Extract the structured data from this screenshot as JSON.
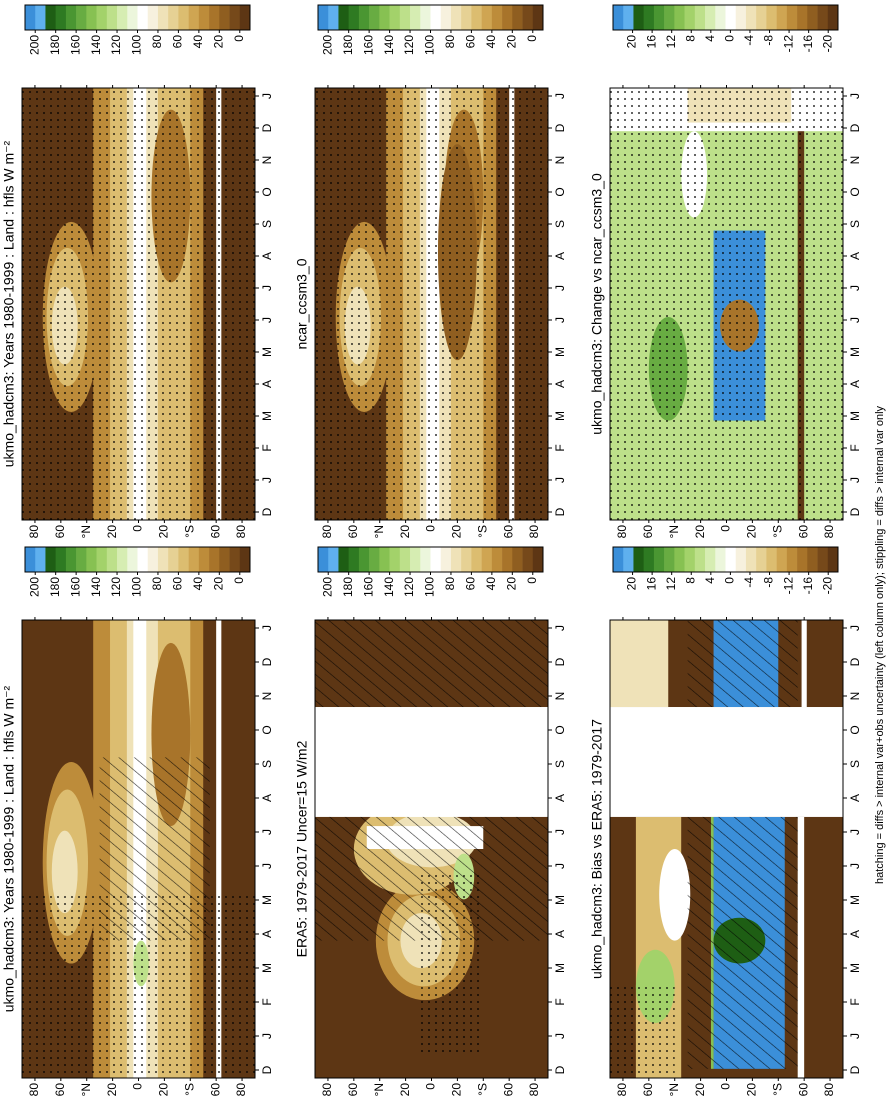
{
  "chart_data": [
    {
      "type": "contour",
      "title": "ukmo_hadcm3: Years 1980-1999 : Land : hfls W m⁻²",
      "categories": [
        "D",
        "J",
        "F",
        "M",
        "A",
        "M",
        "J",
        "J",
        "A",
        "S",
        "O",
        "N",
        "D",
        "J"
      ],
      "ylim": [
        -90,
        90
      ],
      "yticks": [
        80,
        60,
        {
          "value": 40,
          "label": "°N"
        },
        20,
        0,
        {
          "value": -20,
          "label": "20"
        },
        {
          "value": -40,
          "label": "°S"
        },
        {
          "value": -60,
          "label": "60"
        },
        {
          "value": -80,
          "label": "80"
        }
      ],
      "colorbar": {
        "lim": [
          -10,
          210
        ],
        "ticks": [
          200,
          180,
          160,
          140,
          120,
          100,
          80,
          60,
          40,
          20,
          0
        ],
        "colors": [
          "#3b8fd9",
          "#5fb0ee",
          "#1e5e14",
          "#2e7a22",
          "#4a9632",
          "#68ac42",
          "#87c152",
          "#a3d26a",
          "#bde08a",
          "#d6edb2",
          "#ecf6dc",
          "#ffffff",
          "#f7f1de",
          "#efe2b8",
          "#e6d194",
          "#dcbd70",
          "#cfa552",
          "#bd8c3a",
          "#a8742a",
          "#8f5e20",
          "#76491a",
          "#5d3614"
        ]
      },
      "hatching": true,
      "stippling": true
    },
    {
      "type": "contour",
      "title": "ukmo_hadcm3: Years 1980-1999 : Land : hfls W m⁻²",
      "categories": [
        "D",
        "J",
        "F",
        "M",
        "A",
        "M",
        "J",
        "J",
        "A",
        "S",
        "O",
        "N",
        "D",
        "J"
      ],
      "ylim": [
        -90,
        90
      ],
      "yticks": [
        80,
        60,
        {
          "value": 40,
          "label": "°N"
        },
        20,
        0,
        {
          "value": -20,
          "label": "20"
        },
        {
          "value": -40,
          "label": "°S"
        },
        {
          "value": -60,
          "label": "60"
        },
        {
          "value": -80,
          "label": "80"
        }
      ],
      "colorbar": {
        "lim": [
          -10,
          210
        ],
        "ticks": [
          200,
          180,
          160,
          140,
          120,
          100,
          80,
          60,
          40,
          20,
          0
        ],
        "colors": [
          "#3b8fd9",
          "#5fb0ee",
          "#1e5e14",
          "#2e7a22",
          "#4a9632",
          "#68ac42",
          "#87c152",
          "#a3d26a",
          "#bde08a",
          "#d6edb2",
          "#ecf6dc",
          "#ffffff",
          "#f7f1de",
          "#efe2b8",
          "#e6d194",
          "#dcbd70",
          "#cfa552",
          "#bd8c3a",
          "#a8742a",
          "#8f5e20",
          "#76491a",
          "#5d3614"
        ]
      },
      "hatching": false,
      "stippling": true
    },
    {
      "type": "contour",
      "title": "ERA5: 1979-2017 Uncer=15 W/m2",
      "categories": [
        "D",
        "J",
        "F",
        "M",
        "A",
        "M",
        "J",
        "J",
        "A",
        "S",
        "O",
        "N",
        "D",
        "J"
      ],
      "ylim": [
        -90,
        90
      ],
      "yticks": [
        80,
        60,
        {
          "value": 40,
          "label": "°N"
        },
        20,
        0,
        {
          "value": -20,
          "label": "20"
        },
        {
          "value": -40,
          "label": "°S"
        },
        {
          "value": -60,
          "label": "60"
        },
        {
          "value": -80,
          "label": "80"
        }
      ],
      "colorbar": {
        "lim": [
          -10,
          210
        ],
        "ticks": [
          200,
          180,
          160,
          140,
          120,
          100,
          80,
          60,
          40,
          20,
          0
        ],
        "colors": [
          "#3b8fd9",
          "#5fb0ee",
          "#1e5e14",
          "#2e7a22",
          "#4a9632",
          "#68ac42",
          "#87c152",
          "#a3d26a",
          "#bde08a",
          "#d6edb2",
          "#ecf6dc",
          "#ffffff",
          "#f7f1de",
          "#efe2b8",
          "#e6d194",
          "#dcbd70",
          "#cfa552",
          "#bd8c3a",
          "#a8742a",
          "#8f5e20",
          "#76491a",
          "#5d3614"
        ]
      },
      "hatching": true,
      "stippling": true
    },
    {
      "type": "contour",
      "title": "ncar_ccsm3_0",
      "categories": [
        "D",
        "J",
        "F",
        "M",
        "A",
        "M",
        "J",
        "J",
        "A",
        "S",
        "O",
        "N",
        "D",
        "J"
      ],
      "ylim": [
        -90,
        90
      ],
      "yticks": [
        80,
        60,
        {
          "value": 40,
          "label": "°N"
        },
        20,
        0,
        {
          "value": -20,
          "label": "20"
        },
        {
          "value": -40,
          "label": "°S"
        },
        {
          "value": -60,
          "label": "60"
        },
        {
          "value": -80,
          "label": "80"
        }
      ],
      "colorbar": {
        "lim": [
          -10,
          210
        ],
        "ticks": [
          200,
          180,
          160,
          140,
          120,
          100,
          80,
          60,
          40,
          20,
          0
        ],
        "colors": [
          "#3b8fd9",
          "#5fb0ee",
          "#1e5e14",
          "#2e7a22",
          "#4a9632",
          "#68ac42",
          "#87c152",
          "#a3d26a",
          "#bde08a",
          "#d6edb2",
          "#ecf6dc",
          "#ffffff",
          "#f7f1de",
          "#efe2b8",
          "#e6d194",
          "#dcbd70",
          "#cfa552",
          "#bd8c3a",
          "#a8742a",
          "#8f5e20",
          "#76491a",
          "#5d3614"
        ]
      },
      "hatching": false,
      "stippling": true
    },
    {
      "type": "contour",
      "title": "ukmo_hadcm3: Bias vs ERA5: 1979-2017",
      "categories": [
        "D",
        "J",
        "F",
        "M",
        "A",
        "M",
        "J",
        "J",
        "A",
        "S",
        "O",
        "N",
        "D",
        "J"
      ],
      "ylim": [
        -90,
        90
      ],
      "yticks": [
        80,
        60,
        {
          "value": 40,
          "label": "°N"
        },
        20,
        0,
        {
          "value": -20,
          "label": "20"
        },
        {
          "value": -40,
          "label": "°S"
        },
        {
          "value": -60,
          "label": "60"
        },
        {
          "value": -80,
          "label": "80"
        }
      ],
      "colorbar": {
        "lim": [
          -22,
          24
        ],
        "ticks": [
          20,
          16,
          12,
          8,
          4,
          0,
          -4,
          -8,
          -12,
          -16,
          -20
        ],
        "colors": [
          "#3b8fd9",
          "#5fb0ee",
          "#1e5e14",
          "#2e7a22",
          "#4a9632",
          "#68ac42",
          "#87c152",
          "#a3d26a",
          "#bde08a",
          "#d6edb2",
          "#ecf6dc",
          "#ffffff",
          "#f7f1de",
          "#efe2b8",
          "#e6d194",
          "#dcbd70",
          "#cfa552",
          "#bd8c3a",
          "#a8742a",
          "#8f5e20",
          "#76491a",
          "#5d3614"
        ]
      },
      "hatching": true,
      "stippling": true
    },
    {
      "type": "contour",
      "title": "ukmo_hadcm3: Change vs ncar_ccsm3_0",
      "categories": [
        "D",
        "J",
        "F",
        "M",
        "A",
        "M",
        "J",
        "J",
        "A",
        "S",
        "O",
        "N",
        "D",
        "J"
      ],
      "ylim": [
        -90,
        90
      ],
      "yticks": [
        80,
        60,
        {
          "value": 40,
          "label": "°N"
        },
        20,
        0,
        {
          "value": -20,
          "label": "20"
        },
        {
          "value": -40,
          "label": "°S"
        },
        {
          "value": -60,
          "label": "60"
        },
        {
          "value": -80,
          "label": "80"
        }
      ],
      "colorbar": {
        "lim": [
          -22,
          24
        ],
        "ticks": [
          20,
          16,
          12,
          8,
          4,
          0,
          -4,
          -8,
          -12,
          -16,
          -20
        ],
        "colors": [
          "#3b8fd9",
          "#5fb0ee",
          "#1e5e14",
          "#2e7a22",
          "#4a9632",
          "#68ac42",
          "#87c152",
          "#a3d26a",
          "#bde08a",
          "#d6edb2",
          "#ecf6dc",
          "#ffffff",
          "#f7f1de",
          "#efe2b8",
          "#e6d194",
          "#dcbd70",
          "#cfa552",
          "#bd8c3a",
          "#a8742a",
          "#8f5e20",
          "#76491a",
          "#5d3614"
        ]
      },
      "hatching": false,
      "stippling": true
    }
  ],
  "caption": "hatching = diffs > internal var+obs uncertainty (left column only); stippling = diffs > internal var only"
}
